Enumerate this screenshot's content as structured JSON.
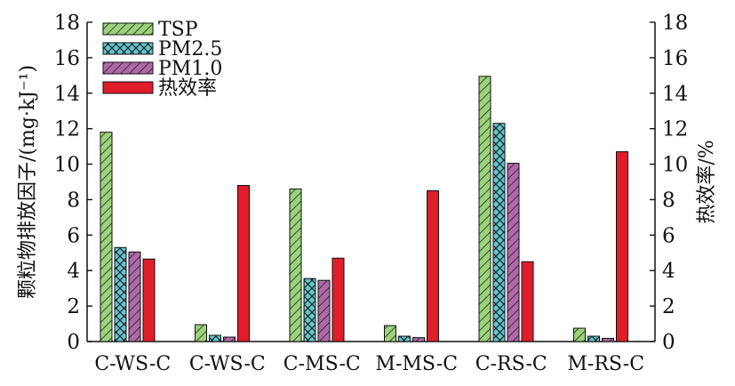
{
  "chart_data": {
    "type": "bar",
    "categories": [
      "C-WS-C",
      "C-WS-C",
      "C-MS-C",
      "M-MS-C",
      "C-RS-C",
      "M-RS-C"
    ],
    "series": [
      {
        "name": "TSP",
        "values": [
          11.8,
          0.95,
          8.6,
          0.9,
          14.95,
          0.75
        ],
        "axis": "left",
        "color": "#9bd37b",
        "pattern": "diagonal-hatch"
      },
      {
        "name": "PM2.5",
        "values": [
          5.3,
          0.35,
          3.55,
          0.3,
          12.3,
          0.3
        ],
        "axis": "left",
        "color": "#5ec8d0",
        "pattern": "cross-hatch"
      },
      {
        "name": "PM1.0",
        "values": [
          5.05,
          0.25,
          3.45,
          0.22,
          10.05,
          0.18
        ],
        "axis": "left",
        "color": "#b068a8",
        "pattern": "diagonal-hatch"
      },
      {
        "name": "热效率",
        "values": [
          4.65,
          8.8,
          4.7,
          8.5,
          4.5,
          10.7
        ],
        "axis": "right",
        "color": "#e01d2a",
        "pattern": "solid"
      }
    ],
    "ylabel_left": "颗粒物排放因子/(mg·kJ⁻¹)",
    "ylabel_right": "热效率/%",
    "ylim_left": [
      0,
      18
    ],
    "ylim_right": [
      0,
      18
    ],
    "yticks": [
      "0",
      "2",
      "4",
      "6",
      "8",
      "10",
      "12",
      "14",
      "16",
      "18"
    ],
    "grid": false,
    "legend_position": "top-left"
  }
}
